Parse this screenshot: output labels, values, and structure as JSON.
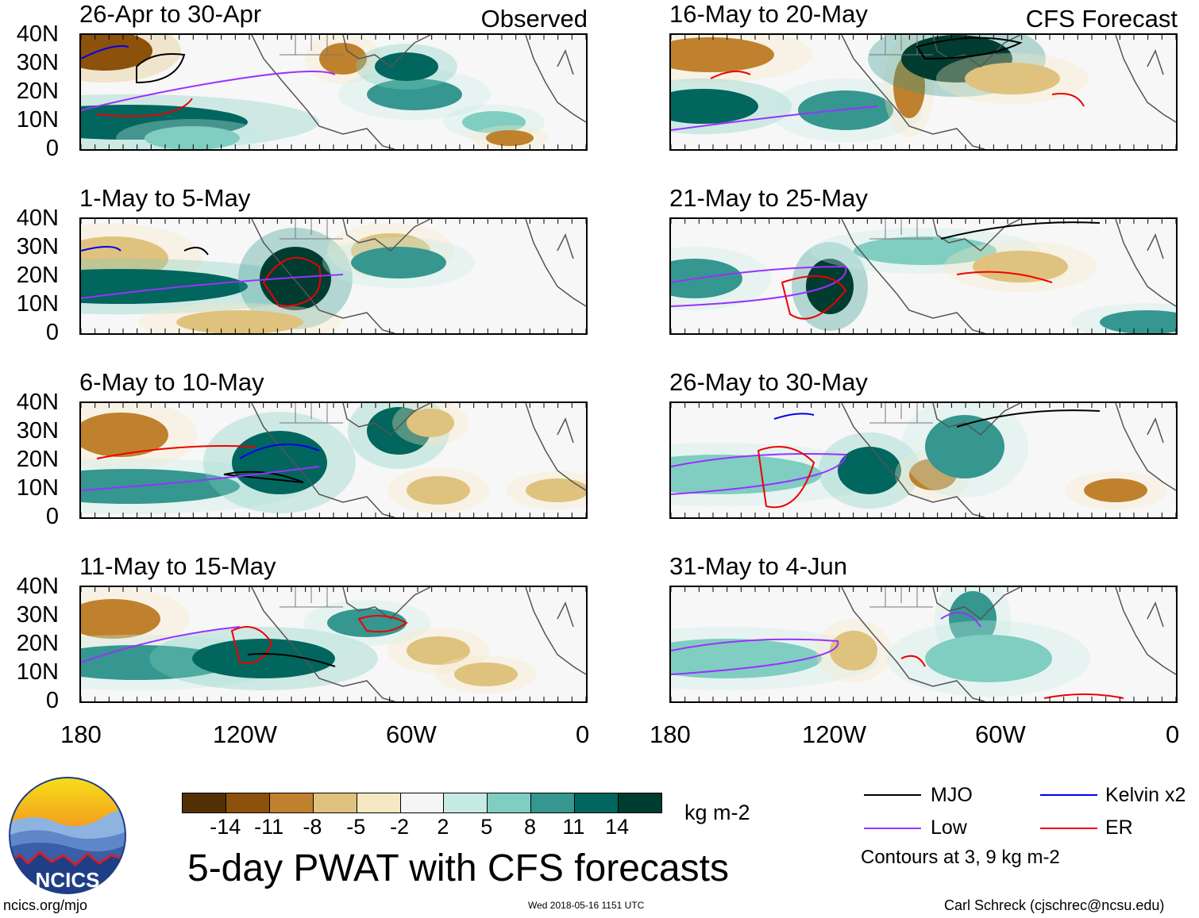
{
  "panels": [
    {
      "id": "p1",
      "title": "26-Apr to 30-Apr",
      "tag": "Observed"
    },
    {
      "id": "p2",
      "title": "1-May to 5-May",
      "tag": ""
    },
    {
      "id": "p3",
      "title": "6-May to 10-May",
      "tag": ""
    },
    {
      "id": "p4",
      "title": "11-May to 15-May",
      "tag": ""
    },
    {
      "id": "p5",
      "title": "16-May to 20-May",
      "tag": "CFS Forecast"
    },
    {
      "id": "p6",
      "title": "21-May to 25-May",
      "tag": ""
    },
    {
      "id": "p7",
      "title": "26-May to 30-May",
      "tag": ""
    },
    {
      "id": "p8",
      "title": "31-May to 4-Jun",
      "tag": ""
    }
  ],
  "lat_labels": [
    "40N",
    "30N",
    "20N",
    "10N",
    "0"
  ],
  "lon_labels": [
    "180",
    "120W",
    "60W",
    "0"
  ],
  "colorbar": {
    "colors": [
      "#543005",
      "#8c510a",
      "#bf812d",
      "#dfc27d",
      "#f6e8c3",
      "#f5f5f5",
      "#c7eae5",
      "#80cdc1",
      "#35978f",
      "#01665e",
      "#003c30"
    ],
    "ticks": [
      "-14",
      "-11",
      "-8",
      "-5",
      "-2",
      "2",
      "5",
      "8",
      "11",
      "14"
    ],
    "unit": "kg m-2"
  },
  "title": "5-day PWAT with CFS forecasts",
  "legend": {
    "items": [
      {
        "label": "MJO",
        "color": "#000000"
      },
      {
        "label": "Kelvin x2",
        "color": "#0000ee"
      },
      {
        "label": "Low",
        "color": "#9b30ff"
      },
      {
        "label": "ER",
        "color": "#ee0000"
      }
    ],
    "note": "Contours at 3, 9 kg m-2"
  },
  "logo_text": "NCICS",
  "footer": {
    "left": "ncics.org/mjo",
    "center": "Wed 2018-05-16 1151 UTC",
    "right": "Carl Schreck (cjschrec@ncsu.edu)"
  }
}
